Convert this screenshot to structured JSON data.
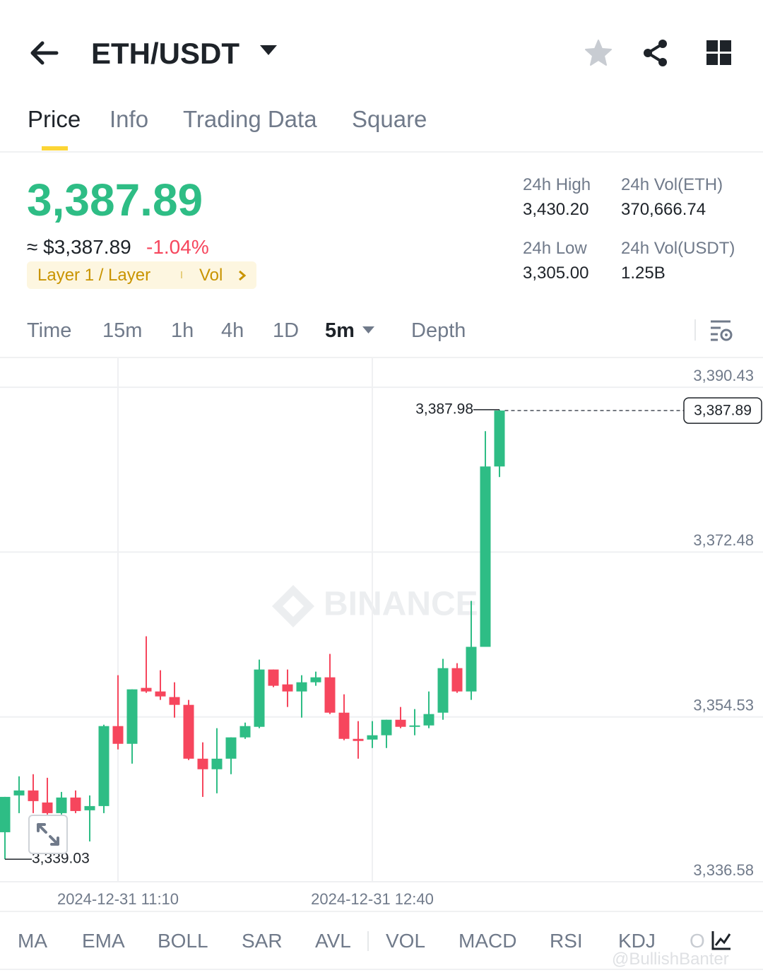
{
  "header": {
    "title": "ETH/USDT"
  },
  "tabs": [
    "Price",
    "Info",
    "Trading Data",
    "Square"
  ],
  "ticker": {
    "price": "3,387.89",
    "approx": "≈ $3,387.89",
    "change": "-1.04%",
    "tag": "Layer 1 / Layer",
    "tag_link": "Vol"
  },
  "stats": [
    {
      "label": "24h High",
      "value": "3,430.20"
    },
    {
      "label": "24h Vol(ETH)",
      "value": "370,666.74"
    },
    {
      "label": "24h Low",
      "value": "3,305.00"
    },
    {
      "label": "24h Vol(USDT)",
      "value": "1.25B"
    }
  ],
  "intervals": [
    "Time",
    "15m",
    "1h",
    "4h",
    "1D",
    "5m",
    "Depth"
  ],
  "indicators": [
    "MA",
    "EMA",
    "BOLL",
    "SAR",
    "AVL",
    "VOL",
    "MACD",
    "RSI",
    "KDJ",
    "O"
  ],
  "watermarks": [
    "BINANCE",
    "@BullishBanter"
  ],
  "chart_data": {
    "type": "candlestick",
    "categories": [
      null,
      null,
      null,
      null,
      null,
      null,
      null,
      null,
      "2024-12-31 11:10",
      null,
      null,
      null,
      null,
      null,
      null,
      null,
      null,
      null,
      null,
      null,
      null,
      null,
      null,
      null,
      null,
      null,
      "2024-12-31 12:40",
      null,
      null,
      null,
      null,
      null,
      null,
      null,
      null,
      null
    ],
    "open": [
      3341.97,
      3345.98,
      3346.52,
      3345.21,
      3344.05,
      3345.75,
      3344.36,
      3344.82,
      3353.53,
      3351.6,
      3357.69,
      3357.3,
      3356.69,
      3355.84,
      3349.98,
      3348.83,
      3349.98,
      3352.3,
      3353.45,
      3359.69,
      3358.07,
      3357.3,
      3358.3,
      3358.84,
      3354.99,
      3352.14,
      3352.06,
      3352.53,
      3354.22,
      3353.45,
      3353.6,
      3354.99,
      3359.84,
      3357.3,
      3362.16,
      3381.8
    ],
    "high": [
      3345.82,
      3348.06,
      3348.29,
      3347.9,
      3346.36,
      3346.52,
      3345.98,
      3353.68,
      3359.07,
      3357.53,
      3363.31,
      3359.61,
      3358.3,
      3356.38,
      3351.76,
      3353.3,
      3352.3,
      3353.91,
      3360.77,
      3359.69,
      3359.69,
      3359.07,
      3359.46,
      3361.39,
      3356.99,
      3354.07,
      3354.07,
      3354.22,
      3355.61,
      3355.38,
      3357.3,
      3360.85,
      3360.38,
      3367.16,
      3385.65,
      3387.98
    ],
    "low": [
      3339.03,
      3344.05,
      3344.05,
      3343.9,
      3343.9,
      3344.05,
      3340.97,
      3344.05,
      3350.99,
      3349.44,
      3357.15,
      3356.38,
      3354.45,
      3349.83,
      3345.82,
      3346.21,
      3348.29,
      3352.14,
      3353.3,
      3357.77,
      3355.61,
      3354.45,
      3357.92,
      3354.84,
      3351.99,
      3349.98,
      3351.14,
      3351.14,
      3353.3,
      3352.53,
      3353.3,
      3354.22,
      3357.15,
      3356.38,
      3362.16,
      3380.65
    ],
    "close": [
      3345.82,
      3346.52,
      3345.36,
      3344.05,
      3345.75,
      3344.28,
      3344.82,
      3353.53,
      3351.6,
      3357.53,
      3357.3,
      3356.76,
      3355.84,
      3349.98,
      3348.83,
      3349.98,
      3352.3,
      3353.53,
      3359.69,
      3357.92,
      3357.3,
      3358.3,
      3358.84,
      3354.99,
      3352.14,
      3351.91,
      3352.53,
      3354.22,
      3353.45,
      3353.6,
      3354.84,
      3359.84,
      3357.3,
      3362.16,
      3381.8,
      3387.89
    ],
    "up_color": "#2ebd85",
    "down_color": "#f6465d",
    "ylim": [
      3336.58,
      3393.59
    ],
    "yticks": [
      {
        "value": 3336.58,
        "label": "3,336.58"
      },
      {
        "value": 3354.53,
        "label": "3,354.53"
      },
      {
        "value": 3372.48,
        "label": "3,372.48"
      },
      {
        "value": 3390.43,
        "label": "3,390.43"
      }
    ],
    "grid": true,
    "high_marker": {
      "value": 3387.98,
      "label": "3,387.98"
    },
    "low_marker": {
      "value": 3339.03,
      "label": "3,339.03"
    },
    "last_price": {
      "value": 3387.89,
      "label": "3,387.89"
    }
  }
}
